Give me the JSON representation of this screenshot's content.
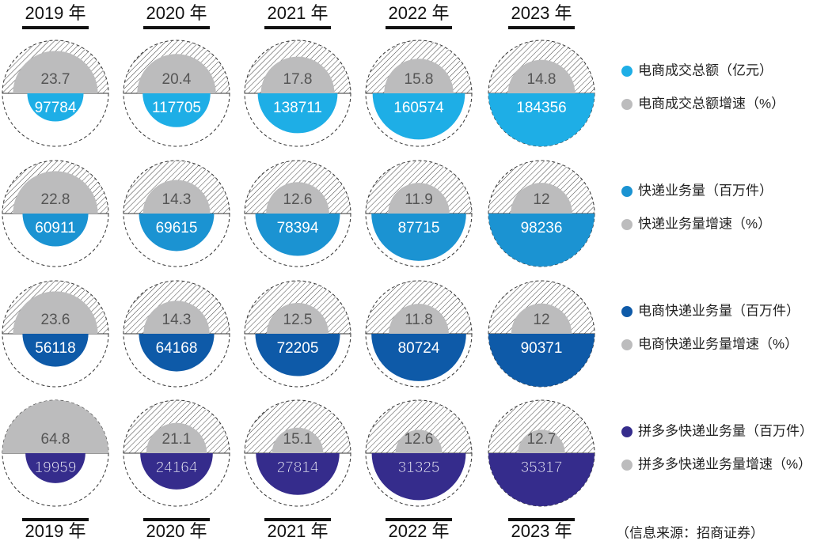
{
  "chart_data": {
    "type": "half-circle",
    "categories": [
      "2019 年",
      "2020 年",
      "2021 年",
      "2022 年",
      "2023 年"
    ],
    "series": [
      {
        "name": "电商成交总额（亿元）",
        "color": "#1eaee6",
        "values": [
          97784,
          117705,
          138711,
          160574,
          184356
        ]
      },
      {
        "name": "电商成交总额增速（%）",
        "color": "#bcbcbd",
        "values": [
          23.7,
          20.4,
          17.8,
          15.8,
          14.8
        ]
      },
      {
        "name": "快递业务量（百万件）",
        "color": "#1b93d2",
        "values": [
          60911,
          69615,
          78394,
          87715,
          98236
        ]
      },
      {
        "name": "快递业务量增速（%）",
        "color": "#bcbcbd",
        "values": [
          22.8,
          14.3,
          12.6,
          11.9,
          12.0
        ]
      },
      {
        "name": "电商快递业务量（百万件）",
        "color": "#0e5aa8",
        "values": [
          56118,
          64168,
          72205,
          80724,
          90371
        ]
      },
      {
        "name": "电商快递业务量增速（%）",
        "color": "#bcbcbd",
        "values": [
          23.6,
          14.3,
          12.5,
          11.8,
          12.0
        ]
      },
      {
        "name": "拼多多快递业务量（百万件）",
        "color": "#352c8c",
        "values": [
          19959,
          24164,
          27814,
          31325,
          35317
        ]
      },
      {
        "name": "拼多多快递业务量增速（%）",
        "color": "#bcbcbd",
        "values": [
          64.8,
          21.1,
          15.1,
          12.6,
          12.7
        ]
      }
    ],
    "source": "（信息来源：招商证券）"
  }
}
